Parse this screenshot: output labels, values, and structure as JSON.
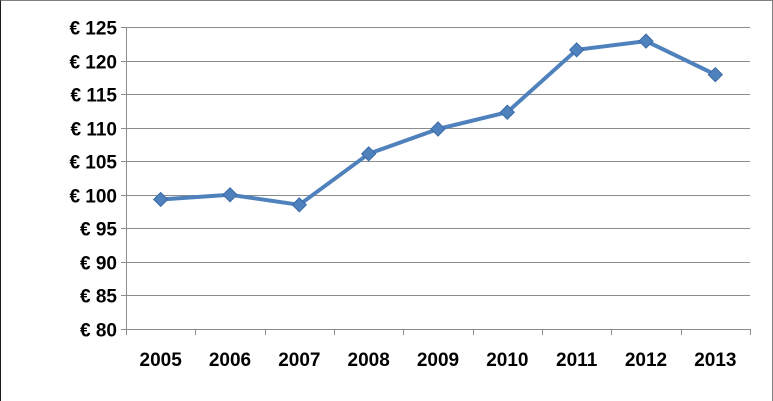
{
  "chart_data": {
    "type": "line",
    "title": "",
    "xlabel": "",
    "ylabel": "",
    "categories": [
      "2005",
      "2006",
      "2007",
      "2008",
      "2009",
      "2010",
      "2011",
      "2012",
      "2013"
    ],
    "series": [
      {
        "values": [
          99.3,
          100.0,
          98.5,
          106.1,
          109.8,
          112.3,
          121.6,
          122.9,
          117.9
        ],
        "color": "#4f81bd",
        "marker": "diamond"
      }
    ],
    "ylim": [
      80,
      125
    ],
    "ytick_values": [
      80,
      85,
      90,
      95,
      100,
      105,
      110,
      115,
      120,
      125
    ],
    "ytick_labels": [
      "€ 80",
      "€ 85",
      "€ 90",
      "€ 95",
      "€ 100",
      "€ 105",
      "€ 110",
      "€ 115",
      "€ 120",
      "€ 125"
    ],
    "grid": true,
    "legend": "none"
  }
}
